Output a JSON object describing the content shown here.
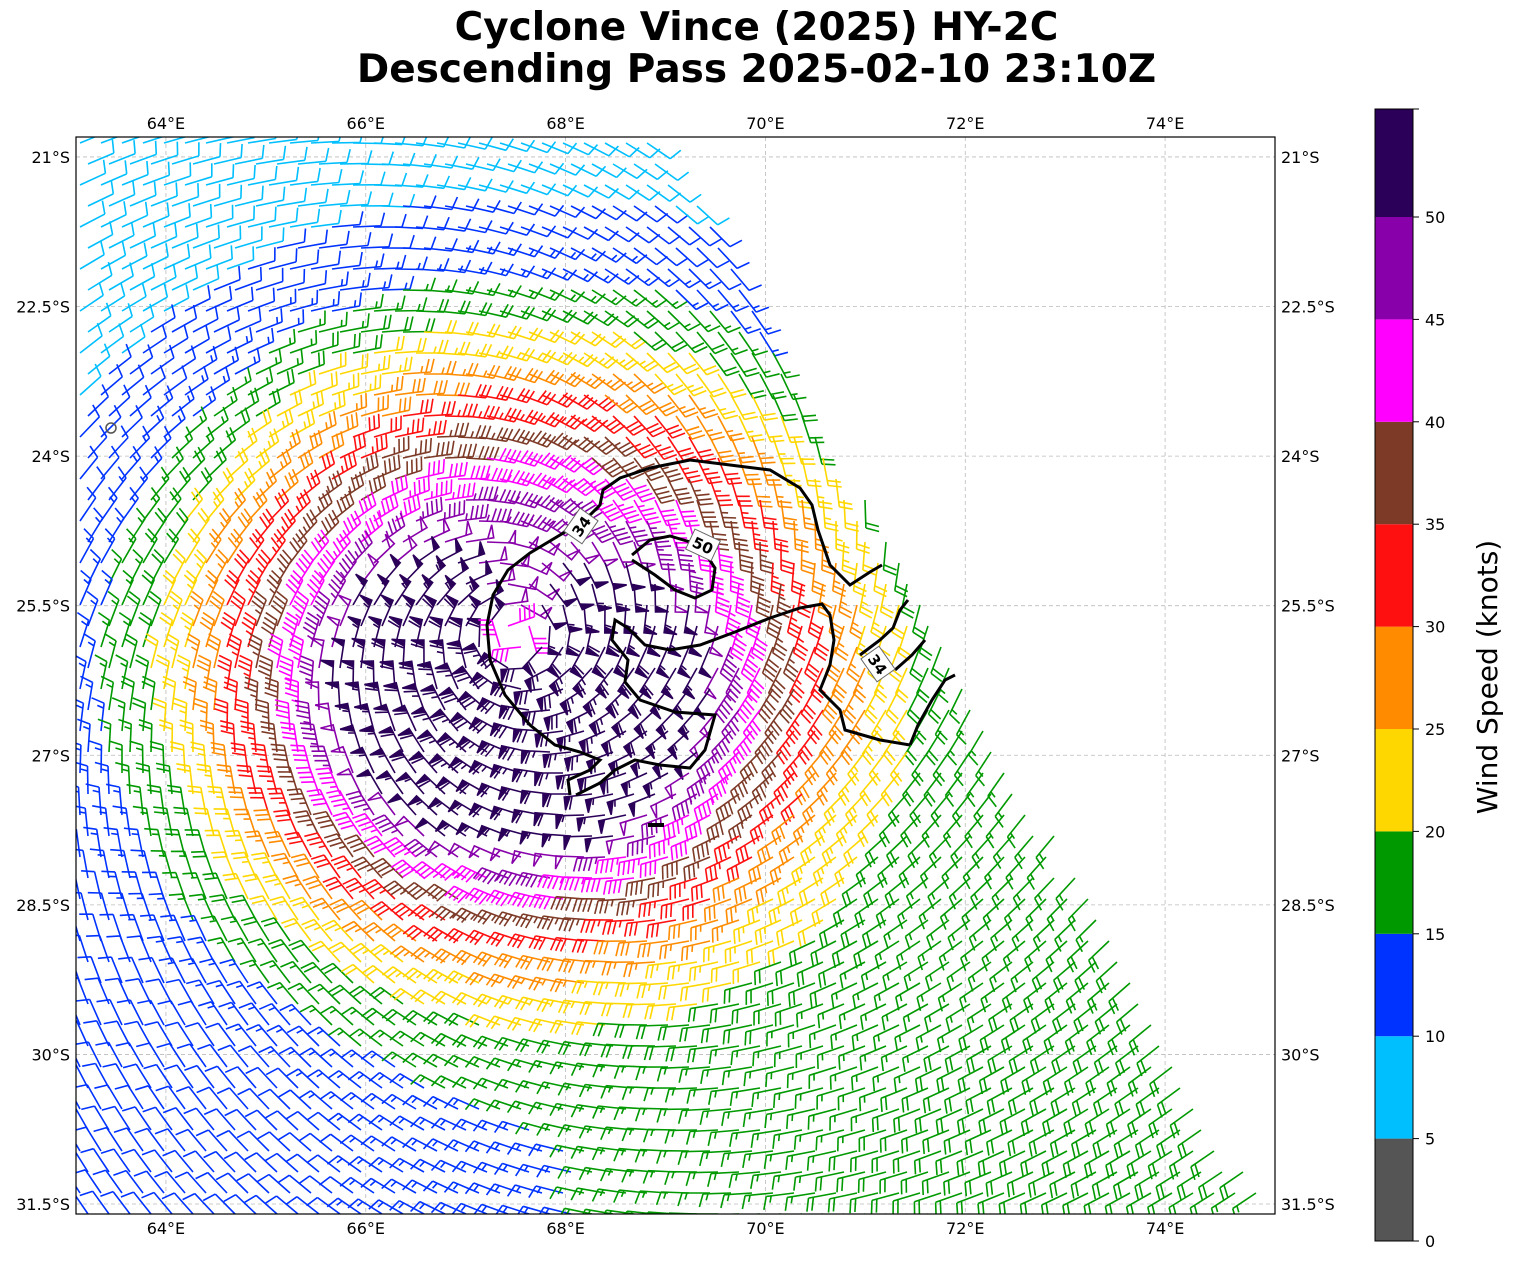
{
  "title": {
    "line1": "Cyclone Vince (2025) HY-2C",
    "line2": "Descending Pass 2025-02-10 23:10Z"
  },
  "map": {
    "lon_ticks": [
      "64°E",
      "66°E",
      "68°E",
      "70°E",
      "72°E",
      "74°E"
    ],
    "lat_ticks": [
      "21°S",
      "22.5°S",
      "24°S",
      "25.5°S",
      "27°S",
      "28.5°S",
      "30°S",
      "31.5°S"
    ],
    "extent": {
      "lon_min": 63.1,
      "lon_max": 75.1,
      "lat_max": -20.8,
      "lat_min": -31.6
    },
    "storm_center": {
      "lon": 67.5,
      "lat": -25.8
    },
    "gridlines": true,
    "contours": [
      {
        "label": "34",
        "unit": "knots"
      },
      {
        "label": "50",
        "unit": "knots"
      },
      {
        "label": "34",
        "unit": "knots"
      }
    ]
  },
  "colorbar": {
    "label": "Wind Speed (knots)",
    "ticks": [
      "0",
      "5",
      "10",
      "15",
      "20",
      "25",
      "30",
      "35",
      "40",
      "45",
      "50"
    ],
    "bins": [
      {
        "range": "0-5",
        "color": "#555555"
      },
      {
        "range": "5-10",
        "color": "#00bfff"
      },
      {
        "range": "10-15",
        "color": "#0033ff"
      },
      {
        "range": "15-20",
        "color": "#009900"
      },
      {
        "range": "20-25",
        "color": "#ffd700"
      },
      {
        "range": "25-30",
        "color": "#ff8c00"
      },
      {
        "range": "30-35",
        "color": "#ff1010"
      },
      {
        "range": "35-40",
        "color": "#7d3a26"
      },
      {
        "range": "40-45",
        "color": "#ff00ff"
      },
      {
        "range": "45-50",
        "color": "#8800aa"
      },
      {
        "range": "50+",
        "color": "#2a0058"
      }
    ]
  }
}
